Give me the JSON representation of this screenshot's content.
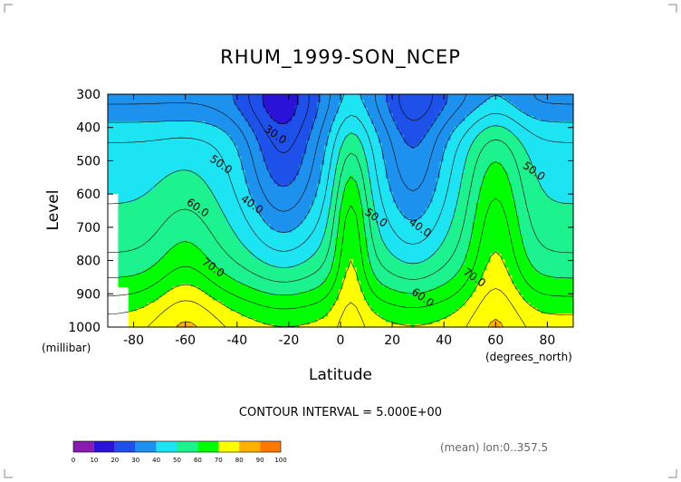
{
  "chart_data": {
    "type": "heatmap",
    "title": "RHUM_1999-SON_NCEP",
    "xlabel": "Latitude",
    "ylabel": "Level",
    "x_unit": "(degrees_north)",
    "y_unit": "(millibar)",
    "xlim": [
      -90,
      90
    ],
    "ylim": [
      1000,
      300
    ],
    "x_ticks": [
      -80,
      -60,
      -40,
      -20,
      0,
      20,
      40,
      60,
      80
    ],
    "x_tick_labels": [
      "-80",
      "-60",
      "-40",
      "-20",
      "0",
      "20",
      "40",
      "60",
      "80"
    ],
    "y_ticks": [
      300,
      400,
      500,
      600,
      700,
      800,
      900,
      1000
    ],
    "y_tick_labels": [
      "300",
      "400",
      "500",
      "600",
      "700",
      "800",
      "900",
      "1000"
    ],
    "contour_interval_text": "CONTOUR INTERVAL = 5.000E+00",
    "annotation": "(mean) lon:0..357.5",
    "contour_labels": [
      {
        "text": "30.0",
        "lat": -26,
        "level": 430
      },
      {
        "text": "40.0",
        "lat": -35,
        "level": 640
      },
      {
        "text": "50.0",
        "lat": -47,
        "level": 520
      },
      {
        "text": "60.0",
        "lat": -56,
        "level": 650
      },
      {
        "text": "70.0",
        "lat": -50,
        "level": 830
      },
      {
        "text": "50.0",
        "lat": 13,
        "level": 680
      },
      {
        "text": "40.0",
        "lat": 30,
        "level": 710
      },
      {
        "text": "60.0",
        "lat": 31,
        "level": 920
      },
      {
        "text": "70.0",
        "lat": 51,
        "level": 860
      },
      {
        "text": "50.0",
        "lat": 74,
        "level": 540
      }
    ],
    "colorbar": {
      "levels": [
        0,
        10,
        20,
        30,
        40,
        50,
        60,
        70,
        80,
        90,
        100
      ],
      "labels": [
        "0",
        "10",
        "20",
        "30",
        "40",
        "50",
        "60",
        "70",
        "80",
        "90",
        "100"
      ],
      "colors": [
        "#8a1ab0",
        "#2a12d6",
        "#1e50ea",
        "#1c92ee",
        "#1ce4f2",
        "#1cf28e",
        "#00ff00",
        "#ffff00",
        "#ffb000",
        "#ff7800",
        "#ff2a00"
      ]
    },
    "grid": false
  }
}
